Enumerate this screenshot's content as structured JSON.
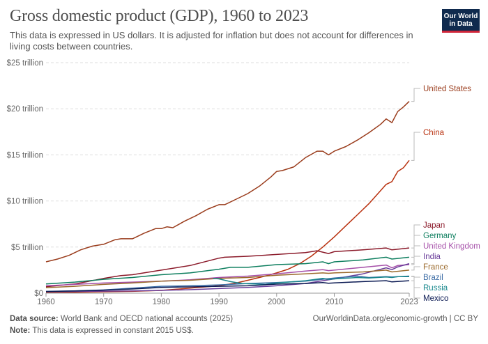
{
  "header": {
    "title": "Gross domestic product (GDP), 1960 to 2023",
    "subtitle": "This data is expressed in US dollars. It is adjusted for inflation but does not account for differences in living costs between countries.",
    "logo_line1": "Our World",
    "logo_line2": "in Data"
  },
  "footer": {
    "source_label": "Data source:",
    "source_text": " World Bank and OECD national accounts (2025)",
    "note_label": "Note:",
    "note_text": " This data is expressed in constant 2015 US$.",
    "url": "OurWorldinData.org/economic-growth | CC BY"
  },
  "chart_data": {
    "type": "line",
    "title": "Gross domestic product (GDP), 1960 to 2023",
    "xlabel": "",
    "ylabel": "",
    "xlim": [
      1960,
      2023
    ],
    "ylim": [
      0,
      25
    ],
    "y_unit": "trillion US$ (constant 2015)",
    "grid": true,
    "legend": "right (line-end labels)",
    "x_ticks": [
      {
        "value": 1960,
        "label": "1960"
      },
      {
        "value": 1970,
        "label": "1970"
      },
      {
        "value": 1980,
        "label": "1980"
      },
      {
        "value": 1990,
        "label": "1990"
      },
      {
        "value": 2000,
        "label": "2000"
      },
      {
        "value": 2010,
        "label": "2010"
      },
      {
        "value": 2023,
        "label": "2023"
      }
    ],
    "y_ticks": [
      {
        "value": 0,
        "label": "$0"
      },
      {
        "value": 5,
        "label": "$5 trillion"
      },
      {
        "value": 10,
        "label": "$10 trillion"
      },
      {
        "value": 15,
        "label": "$15 trillion"
      },
      {
        "value": 20,
        "label": "$20 trillion"
      },
      {
        "value": 25,
        "label": "$25 trillion"
      }
    ],
    "series": [
      {
        "name": "United States",
        "color": "#9a3c1c",
        "points": [
          [
            1960,
            3.4
          ],
          [
            1962,
            3.7
          ],
          [
            1964,
            4.1
          ],
          [
            1966,
            4.7
          ],
          [
            1968,
            5.1
          ],
          [
            1970,
            5.3
          ],
          [
            1972,
            5.8
          ],
          [
            1973,
            5.9
          ],
          [
            1975,
            5.9
          ],
          [
            1977,
            6.5
          ],
          [
            1979,
            7.0
          ],
          [
            1980,
            7.0
          ],
          [
            1981,
            7.2
          ],
          [
            1982,
            7.1
          ],
          [
            1984,
            7.8
          ],
          [
            1986,
            8.4
          ],
          [
            1988,
            9.1
          ],
          [
            1990,
            9.6
          ],
          [
            1991,
            9.6
          ],
          [
            1993,
            10.2
          ],
          [
            1995,
            10.8
          ],
          [
            1997,
            11.6
          ],
          [
            1999,
            12.6
          ],
          [
            2000,
            13.2
          ],
          [
            2001,
            13.3
          ],
          [
            2003,
            13.7
          ],
          [
            2005,
            14.7
          ],
          [
            2007,
            15.4
          ],
          [
            2008,
            15.4
          ],
          [
            2009,
            15.0
          ],
          [
            2010,
            15.4
          ],
          [
            2012,
            15.9
          ],
          [
            2014,
            16.6
          ],
          [
            2016,
            17.4
          ],
          [
            2018,
            18.3
          ],
          [
            2019,
            18.9
          ],
          [
            2020,
            18.5
          ],
          [
            2021,
            19.7
          ],
          [
            2022,
            20.2
          ],
          [
            2023,
            20.8
          ]
        ]
      },
      {
        "name": "China",
        "color": "#b8300e",
        "points": [
          [
            1960,
            0.1
          ],
          [
            1965,
            0.1
          ],
          [
            1970,
            0.15
          ],
          [
            1975,
            0.2
          ],
          [
            1980,
            0.3
          ],
          [
            1985,
            0.55
          ],
          [
            1990,
            0.8
          ],
          [
            1993,
            1.1
          ],
          [
            1995,
            1.4
          ],
          [
            1998,
            1.85
          ],
          [
            2000,
            2.2
          ],
          [
            2002,
            2.6
          ],
          [
            2004,
            3.2
          ],
          [
            2006,
            4.0
          ],
          [
            2008,
            5.0
          ],
          [
            2010,
            6.1
          ],
          [
            2012,
            7.3
          ],
          [
            2014,
            8.5
          ],
          [
            2016,
            9.7
          ],
          [
            2018,
            11.1
          ],
          [
            2019,
            11.8
          ],
          [
            2020,
            12.1
          ],
          [
            2021,
            13.2
          ],
          [
            2022,
            13.6
          ],
          [
            2023,
            14.4
          ]
        ]
      },
      {
        "name": "Japan",
        "color": "#8b1a2a",
        "points": [
          [
            1960,
            0.7
          ],
          [
            1965,
            1.0
          ],
          [
            1970,
            1.6
          ],
          [
            1973,
            1.9
          ],
          [
            1975,
            2.0
          ],
          [
            1980,
            2.5
          ],
          [
            1985,
            3.0
          ],
          [
            1990,
            3.8
          ],
          [
            1991,
            3.9
          ],
          [
            1995,
            4.0
          ],
          [
            2000,
            4.2
          ],
          [
            2005,
            4.4
          ],
          [
            2007,
            4.6
          ],
          [
            2009,
            4.3
          ],
          [
            2010,
            4.5
          ],
          [
            2015,
            4.7
          ],
          [
            2019,
            4.9
          ],
          [
            2020,
            4.7
          ],
          [
            2023,
            4.9
          ]
        ]
      },
      {
        "name": "Germany",
        "color": "#0d7e5e",
        "points": [
          [
            1960,
            1.0
          ],
          [
            1965,
            1.2
          ],
          [
            1970,
            1.5
          ],
          [
            1975,
            1.7
          ],
          [
            1980,
            2.0
          ],
          [
            1985,
            2.2
          ],
          [
            1990,
            2.6
          ],
          [
            1992,
            2.8
          ],
          [
            1995,
            2.8
          ],
          [
            2000,
            3.1
          ],
          [
            2005,
            3.2
          ],
          [
            2008,
            3.4
          ],
          [
            2009,
            3.2
          ],
          [
            2010,
            3.4
          ],
          [
            2015,
            3.6
          ],
          [
            2019,
            3.9
          ],
          [
            2020,
            3.7
          ],
          [
            2023,
            3.9
          ]
        ]
      },
      {
        "name": "United Kingdom",
        "color": "#a54ea8",
        "points": [
          [
            1960,
            0.8
          ],
          [
            1965,
            0.95
          ],
          [
            1970,
            1.1
          ],
          [
            1975,
            1.2
          ],
          [
            1980,
            1.3
          ],
          [
            1985,
            1.45
          ],
          [
            1990,
            1.7
          ],
          [
            1995,
            1.85
          ],
          [
            2000,
            2.1
          ],
          [
            2005,
            2.4
          ],
          [
            2008,
            2.55
          ],
          [
            2009,
            2.45
          ],
          [
            2010,
            2.5
          ],
          [
            2015,
            2.8
          ],
          [
            2019,
            3.05
          ],
          [
            2020,
            2.75
          ],
          [
            2021,
            3.0
          ],
          [
            2023,
            3.1
          ]
        ]
      },
      {
        "name": "India",
        "color": "#6a3d9a",
        "points": [
          [
            1960,
            0.15
          ],
          [
            1965,
            0.18
          ],
          [
            1970,
            0.22
          ],
          [
            1975,
            0.25
          ],
          [
            1980,
            0.3
          ],
          [
            1985,
            0.38
          ],
          [
            1990,
            0.5
          ],
          [
            1995,
            0.62
          ],
          [
            2000,
            0.8
          ],
          [
            2005,
            1.05
          ],
          [
            2010,
            1.55
          ],
          [
            2015,
            2.1
          ],
          [
            2019,
            2.75
          ],
          [
            2020,
            2.55
          ],
          [
            2021,
            2.85
          ],
          [
            2023,
            3.2
          ]
        ]
      },
      {
        "name": "France",
        "color": "#9b6a2c",
        "points": [
          [
            1960,
            0.6
          ],
          [
            1965,
            0.75
          ],
          [
            1970,
            0.95
          ],
          [
            1975,
            1.1
          ],
          [
            1980,
            1.3
          ],
          [
            1985,
            1.4
          ],
          [
            1990,
            1.6
          ],
          [
            1995,
            1.7
          ],
          [
            2000,
            1.95
          ],
          [
            2005,
            2.1
          ],
          [
            2008,
            2.2
          ],
          [
            2009,
            2.15
          ],
          [
            2010,
            2.2
          ],
          [
            2015,
            2.3
          ],
          [
            2019,
            2.5
          ],
          [
            2020,
            2.3
          ],
          [
            2023,
            2.5
          ]
        ]
      },
      {
        "name": "Brazil",
        "color": "#3e6ea6",
        "points": [
          [
            1960,
            0.2
          ],
          [
            1965,
            0.25
          ],
          [
            1970,
            0.35
          ],
          [
            1975,
            0.55
          ],
          [
            1980,
            0.75
          ],
          [
            1985,
            0.8
          ],
          [
            1990,
            0.9
          ],
          [
            1995,
            1.05
          ],
          [
            2000,
            1.15
          ],
          [
            2005,
            1.3
          ],
          [
            2010,
            1.65
          ],
          [
            2014,
            1.85
          ],
          [
            2016,
            1.7
          ],
          [
            2019,
            1.8
          ],
          [
            2020,
            1.75
          ],
          [
            2023,
            1.85
          ]
        ]
      },
      {
        "name": "Russia",
        "color": "#17878c",
        "points": [
          [
            1989,
            1.6
          ],
          [
            1990,
            1.55
          ],
          [
            1992,
            1.25
          ],
          [
            1994,
            1.05
          ],
          [
            1996,
            1.0
          ],
          [
            1998,
            0.95
          ],
          [
            2000,
            1.1
          ],
          [
            2005,
            1.35
          ],
          [
            2008,
            1.6
          ],
          [
            2009,
            1.5
          ],
          [
            2010,
            1.55
          ],
          [
            2014,
            1.7
          ],
          [
            2016,
            1.65
          ],
          [
            2019,
            1.75
          ],
          [
            2020,
            1.7
          ],
          [
            2021,
            1.8
          ],
          [
            2023,
            1.8
          ]
        ]
      },
      {
        "name": "Mexico",
        "color": "#0b1a53",
        "points": [
          [
            1960,
            0.18
          ],
          [
            1965,
            0.24
          ],
          [
            1970,
            0.33
          ],
          [
            1975,
            0.45
          ],
          [
            1980,
            0.62
          ],
          [
            1982,
            0.65
          ],
          [
            1985,
            0.68
          ],
          [
            1990,
            0.75
          ],
          [
            1995,
            0.8
          ],
          [
            2000,
            0.98
          ],
          [
            2005,
            1.05
          ],
          [
            2008,
            1.15
          ],
          [
            2009,
            1.08
          ],
          [
            2010,
            1.12
          ],
          [
            2015,
            1.25
          ],
          [
            2019,
            1.35
          ],
          [
            2020,
            1.22
          ],
          [
            2023,
            1.35
          ]
        ]
      }
    ]
  }
}
